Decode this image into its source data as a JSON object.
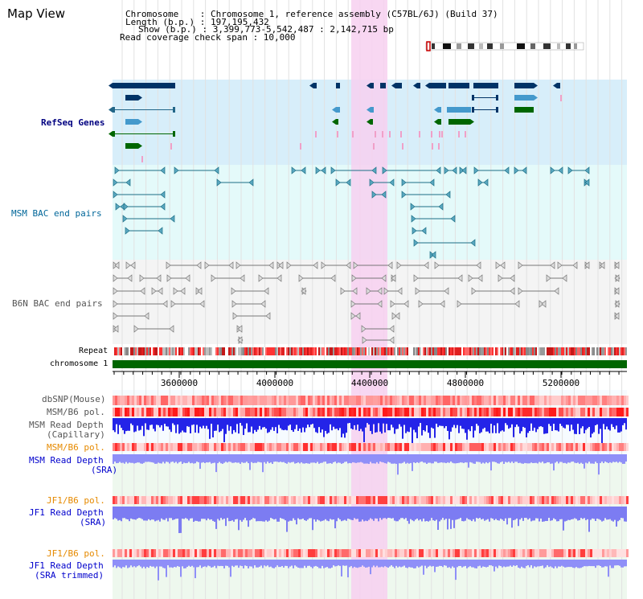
{
  "title": "Map View",
  "info": {
    "chromosome": "Chromosome    : Chromosome 1, reference assembly (C57BL/6J) (Build 37)",
    "length": "Length (b.p.) : 197,195,432",
    "show": "Show (b.p.) : 3,399,773-5,542,487 : 2,142,715 bp",
    "span": "Read coverage check span : 10,000"
  },
  "tracks": {
    "refseq": "RefSeq Genes",
    "msm_bac": "MSM BAC end pairs",
    "b6n_bac": "B6N BAC end pairs",
    "repeat": "Repeat",
    "chromosome": "chromosome 1",
    "dbsnp": "dbSNP(Mouse)",
    "msm_b6_pol": "MSM/B6 pol.",
    "msm_read_cap1": "MSM Read Depth",
    "msm_read_cap2": "(Capillary)",
    "msm_b6_pol2": "MSM/B6 pol.",
    "msm_read_sra1": "MSM Read Depth",
    "msm_read_sra2": "(SRA)",
    "jf1_b6_pol": "JF1/B6 pol.",
    "jf1_read1": "JF1 Read Depth",
    "jf1_read2": "(SRA)",
    "jf1_b6_pol2": "JF1/B6 pol.",
    "jf1_trim1": "JF1 Read Depth",
    "jf1_trim2": "(SRA trimmed)"
  },
  "axis": {
    "ticks": [
      "3600000",
      "4000000",
      "4400000",
      "4800000",
      "5200000"
    ]
  },
  "colors": {
    "highlight": "#f7d0f0",
    "refseq_bg": "#d7eefa",
    "bac_bg": "#e4fafa",
    "chromosome_bar": "#006600",
    "gene_dark": "#003366",
    "gene_mid": "#4499cc",
    "gene_green": "#006600"
  }
}
